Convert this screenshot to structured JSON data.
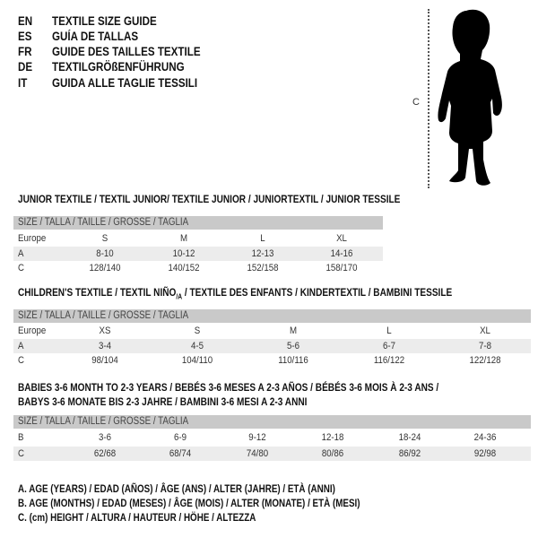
{
  "titles": [
    {
      "lang": "EN",
      "text": "TEXTILE SIZE GUIDE"
    },
    {
      "lang": "ES",
      "text": "GUÍA DE TALLAS"
    },
    {
      "lang": "FR",
      "text": "GUIDE DES TAILLES TEXTILE"
    },
    {
      "lang": "DE",
      "text": "TEXTILGRÖßENFÜHRUNG"
    },
    {
      "lang": "IT",
      "text": "GUIDA ALLE TAGLIE TESSILI"
    }
  ],
  "figure": {
    "measure_label": "C"
  },
  "junior": {
    "heading": "JUNIOR TEXTILE / TEXTIL JUNIOR/ TEXTILE JUNIOR / JUNIORTEXTIL / JUNIOR TESSILE",
    "header": "SIZE / TALLA / TAILLE / GRÖSSE / TAGLIA",
    "rows": [
      {
        "label": "Europe",
        "values": [
          "S",
          "M",
          "L",
          "XL"
        ]
      },
      {
        "label": "A",
        "values": [
          "8-10",
          "10-12",
          "12-13",
          "14-16"
        ]
      },
      {
        "label": "C",
        "values": [
          "128/140",
          "140/152",
          "152/158",
          "158/170"
        ]
      }
    ]
  },
  "children": {
    "heading_pre": "CHILDREN'S TEXTILE / TEXTIL NIÑO",
    "heading_sub": "/A",
    "heading_post": " / TEXTILE DES ENFANTS / KINDERTEXTIL / BAMBINI TESSILE",
    "header": "SIZE / TALLA / TAILLE / GRÖSSE / TAGLIA",
    "rows": [
      {
        "label": "Europe",
        "values": [
          "XS",
          "S",
          "M",
          "L",
          "XL"
        ]
      },
      {
        "label": "A",
        "values": [
          "3-4",
          "4-5",
          "5-6",
          "6-7",
          "7-8"
        ]
      },
      {
        "label": "C",
        "values": [
          "98/104",
          "104/110",
          "110/116",
          "116/122",
          "122/128"
        ]
      }
    ]
  },
  "babies": {
    "heading_line1": "BABIES 3-6 MONTH TO 2-3 YEARS / BEBÉS 3-6 MESES A 2-3 AÑOS / BÉBÉS 3-6 MOIS À 2-3 ANS /",
    "heading_line2": "BABYS 3-6 MONATE BIS 2-3 JAHRE / BAMBINI 3-6 MESI A 2-3 ANNI",
    "header": "SIZE / TALLA / TAILLE / GRÖSSE / TAGLIA",
    "rows": [
      {
        "label": "B",
        "values": [
          "3-6",
          "6-9",
          "9-12",
          "12-18",
          "18-24",
          "24-36"
        ]
      },
      {
        "label": "C",
        "values": [
          "62/68",
          "68/74",
          "74/80",
          "80/86",
          "86/92",
          "92/98"
        ]
      }
    ]
  },
  "footnotes": [
    "A. AGE (YEARS) / EDAD (AÑOS) / ÂGE (ANS) / ALTER (JAHRE) / ETÀ (ANNI)",
    "B. AGE (MONTHS) / EDAD (MESES) / ÂGE (MOIS) / ALTER (MONATE) / ETÀ (MESI)",
    "C. (cm) HEIGHT / ALTURA / HAUTEUR / HÖHE / ALTEZZA"
  ]
}
